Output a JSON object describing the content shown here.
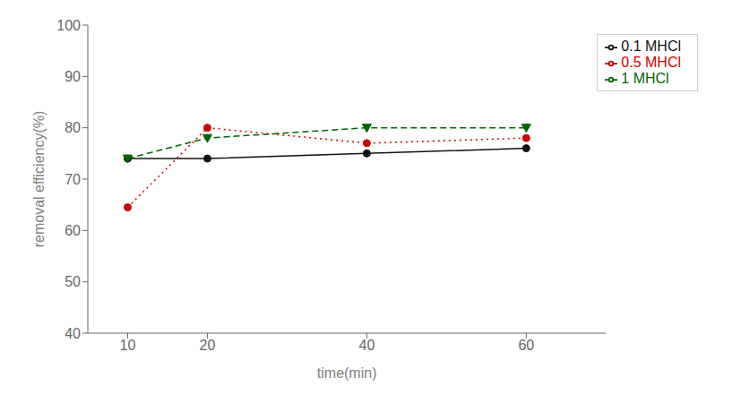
{
  "chart_data": {
    "type": "line",
    "xlabel": "time(min)",
    "ylabel": "removal efficiency(%)",
    "x": [
      10,
      20,
      40,
      60
    ],
    "series": [
      {
        "name": "0.1 MHCl",
        "color": "#111111",
        "marker": "circle",
        "line_style": "solid",
        "values": [
          74,
          74,
          75,
          76
        ]
      },
      {
        "name": "0.5 MHCl",
        "color": "#cc0000",
        "marker": "circle",
        "line_style": "dotted",
        "values": [
          64.5,
          80,
          77,
          78
        ]
      },
      {
        "name": "1 MHCl",
        "color": "#006600",
        "marker": "triangle-down",
        "line_style": "dashed",
        "values": [
          74,
          78,
          80,
          80
        ]
      }
    ],
    "xlim": [
      5,
      70
    ],
    "ylim": [
      40,
      100
    ],
    "xticks": [
      10,
      20,
      40,
      60
    ],
    "yticks": [
      40,
      50,
      60,
      70,
      80,
      90,
      100
    ],
    "grid": false,
    "legend": "upper right"
  }
}
